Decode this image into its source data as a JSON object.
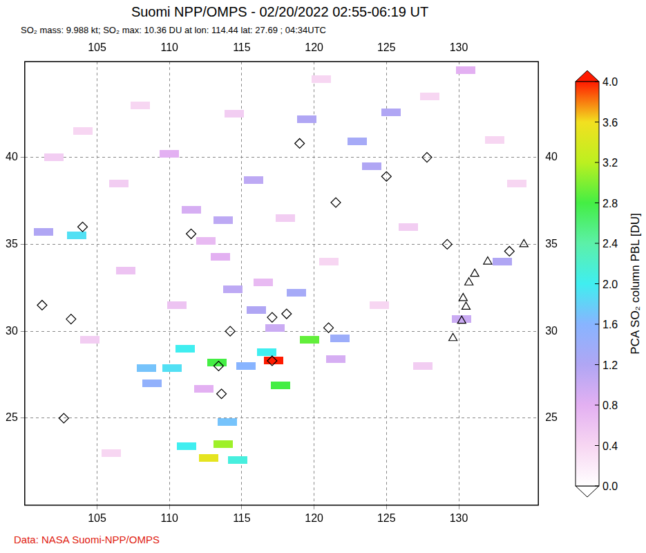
{
  "chart_data": {
    "type": "map",
    "title": "Suomi NPP/OMPS - 02/20/2022 02:55-06:19 UT",
    "subtitle": "SO₂ mass: 9.988 kt; SO₂ max: 10.36 DU at lon: 114.44 lat: 27.69 ; 04:34UTC",
    "credit": "Data: NASA Suomi-NPP/OMPS",
    "xlim": [
      100,
      135.5
    ],
    "xticks": [
      105,
      110,
      115,
      120,
      125,
      130
    ],
    "ylim": [
      20,
      45.5
    ],
    "yticks": [
      25,
      30,
      35,
      40
    ],
    "grid": true,
    "cells": [
      {
        "lon": 117.2,
        "lat": 28.3,
        "value": 4.0
      },
      {
        "lon": 113.3,
        "lat": 28.2,
        "value": 2.8
      },
      {
        "lon": 117.7,
        "lat": 26.9,
        "value": 2.8
      },
      {
        "lon": 119.7,
        "lat": 29.5,
        "value": 2.9
      },
      {
        "lon": 116.7,
        "lat": 28.8,
        "value": 2.0
      },
      {
        "lon": 115.3,
        "lat": 28.0,
        "value": 1.6
      },
      {
        "lon": 121.8,
        "lat": 29.6,
        "value": 1.4
      },
      {
        "lon": 111.1,
        "lat": 29.0,
        "value": 2.0
      },
      {
        "lon": 108.4,
        "lat": 27.9,
        "value": 1.7
      },
      {
        "lon": 110.2,
        "lat": 27.9,
        "value": 1.9
      },
      {
        "lon": 108.8,
        "lat": 27.0,
        "value": 1.5
      },
      {
        "lon": 114.0,
        "lat": 24.8,
        "value": 1.7
      },
      {
        "lon": 113.7,
        "lat": 23.5,
        "value": 3.1
      },
      {
        "lon": 112.7,
        "lat": 22.7,
        "value": 3.5
      },
      {
        "lon": 114.7,
        "lat": 22.6,
        "value": 2.1
      },
      {
        "lon": 111.2,
        "lat": 23.4,
        "value": 2.0
      },
      {
        "lon": 118.8,
        "lat": 32.2,
        "value": 1.3
      },
      {
        "lon": 116.0,
        "lat": 31.2,
        "value": 1.2
      },
      {
        "lon": 114.4,
        "lat": 32.4,
        "value": 1.1
      },
      {
        "lon": 113.7,
        "lat": 36.4,
        "value": 1.1
      },
      {
        "lon": 115.8,
        "lat": 38.7,
        "value": 1.1
      },
      {
        "lon": 119.5,
        "lat": 42.2,
        "value": 1.2
      },
      {
        "lon": 123.0,
        "lat": 40.9,
        "value": 1.3
      },
      {
        "lon": 125.3,
        "lat": 42.6,
        "value": 1.2
      },
      {
        "lon": 124.0,
        "lat": 39.5,
        "value": 1.2
      },
      {
        "lon": 103.6,
        "lat": 35.5,
        "value": 1.9
      },
      {
        "lon": 101.3,
        "lat": 35.7,
        "value": 1.2
      },
      {
        "lon": 130.5,
        "lat": 45.0,
        "value": 0.8
      },
      {
        "lon": 130.2,
        "lat": 30.7,
        "value": 1.0
      },
      {
        "lon": 133.0,
        "lat": 34.0,
        "value": 1.2
      },
      {
        "lon": 110.0,
        "lat": 40.2,
        "value": 0.8
      },
      {
        "lon": 111.5,
        "lat": 37.0,
        "value": 0.9
      },
      {
        "lon": 113.5,
        "lat": 34.3,
        "value": 0.8
      },
      {
        "lon": 112.5,
        "lat": 35.2,
        "value": 0.7
      },
      {
        "lon": 117.3,
        "lat": 30.2,
        "value": 1.0
      },
      {
        "lon": 116.5,
        "lat": 32.8,
        "value": 0.7
      },
      {
        "lon": 121.5,
        "lat": 28.4,
        "value": 0.9
      },
      {
        "lon": 112.4,
        "lat": 26.7,
        "value": 0.8
      },
      {
        "lon": 106.5,
        "lat": 38.5,
        "value": 0.5
      },
      {
        "lon": 104.0,
        "lat": 41.5,
        "value": 0.4
      },
      {
        "lon": 108.0,
        "lat": 43.0,
        "value": 0.4
      },
      {
        "lon": 114.5,
        "lat": 42.5,
        "value": 0.5
      },
      {
        "lon": 118.0,
        "lat": 36.5,
        "value": 0.5
      },
      {
        "lon": 121.0,
        "lat": 34.0,
        "value": 0.4
      },
      {
        "lon": 126.5,
        "lat": 36.0,
        "value": 0.5
      },
      {
        "lon": 128.0,
        "lat": 43.5,
        "value": 0.4
      },
      {
        "lon": 132.5,
        "lat": 41.0,
        "value": 0.4
      },
      {
        "lon": 124.5,
        "lat": 31.5,
        "value": 0.4
      },
      {
        "lon": 127.5,
        "lat": 28.0,
        "value": 0.5
      },
      {
        "lon": 104.5,
        "lat": 29.5,
        "value": 0.5
      },
      {
        "lon": 107.0,
        "lat": 33.5,
        "value": 0.6
      },
      {
        "lon": 102.0,
        "lat": 40.0,
        "value": 0.5
      },
      {
        "lon": 110.5,
        "lat": 31.5,
        "value": 0.6
      },
      {
        "lon": 134.0,
        "lat": 38.5,
        "value": 0.4
      },
      {
        "lon": 120.5,
        "lat": 44.5,
        "value": 0.4
      },
      {
        "lon": 106.0,
        "lat": 23.0,
        "value": 0.4
      }
    ],
    "markers": [
      {
        "lon": 104.0,
        "lat": 36.0,
        "marker": "diamond"
      },
      {
        "lon": 101.2,
        "lat": 31.5,
        "marker": "diamond"
      },
      {
        "lon": 103.2,
        "lat": 30.7,
        "marker": "diamond"
      },
      {
        "lon": 102.7,
        "lat": 25.0,
        "marker": "diamond"
      },
      {
        "lon": 111.5,
        "lat": 35.6,
        "marker": "diamond"
      },
      {
        "lon": 113.4,
        "lat": 28.0,
        "marker": "diamond"
      },
      {
        "lon": 114.2,
        "lat": 30.0,
        "marker": "diamond"
      },
      {
        "lon": 117.1,
        "lat": 30.8,
        "marker": "diamond"
      },
      {
        "lon": 118.1,
        "lat": 31.0,
        "marker": "diamond"
      },
      {
        "lon": 117.1,
        "lat": 28.3,
        "marker": "diamond"
      },
      {
        "lon": 113.6,
        "lat": 26.4,
        "marker": "diamond"
      },
      {
        "lon": 121.0,
        "lat": 30.2,
        "marker": "diamond"
      },
      {
        "lon": 119.0,
        "lat": 40.8,
        "marker": "diamond"
      },
      {
        "lon": 121.5,
        "lat": 37.4,
        "marker": "diamond"
      },
      {
        "lon": 125.0,
        "lat": 38.9,
        "marker": "diamond"
      },
      {
        "lon": 127.8,
        "lat": 40.0,
        "marker": "diamond"
      },
      {
        "lon": 129.2,
        "lat": 35.0,
        "marker": "diamond"
      },
      {
        "lon": 133.5,
        "lat": 34.6,
        "marker": "diamond"
      },
      {
        "lon": 130.7,
        "lat": 32.8,
        "marker": "triangle"
      },
      {
        "lon": 131.1,
        "lat": 33.3,
        "marker": "triangle"
      },
      {
        "lon": 130.3,
        "lat": 31.9,
        "marker": "triangle"
      },
      {
        "lon": 130.5,
        "lat": 31.4,
        "marker": "triangle"
      },
      {
        "lon": 130.2,
        "lat": 30.6,
        "marker": "triangle"
      },
      {
        "lon": 129.6,
        "lat": 29.6,
        "marker": "triangle"
      },
      {
        "lon": 132.0,
        "lat": 34.0,
        "marker": "triangle"
      },
      {
        "lon": 134.5,
        "lat": 35.0,
        "marker": "triangle"
      }
    ],
    "colorbar": {
      "label": "PCA SO₂ column PBL [DU]",
      "range": [
        0,
        4
      ],
      "ticks": [
        {
          "value": 0,
          "label": "0.0"
        },
        0.4,
        0.8,
        1.2,
        1.6,
        {
          "value": 2,
          "label": "2.0"
        },
        2.4,
        2.8,
        3.2,
        3.6,
        {
          "value": 4,
          "label": "4.0"
        }
      ],
      "colors": [
        "#ffffff",
        "#f7d6f2",
        "#e3b0f2",
        "#b0a6f4",
        "#88b4ff",
        "#40eef0",
        "#5cf0a8",
        "#44ee44",
        "#bcf020",
        "#f2e020",
        "#ff1a00"
      ]
    }
  }
}
